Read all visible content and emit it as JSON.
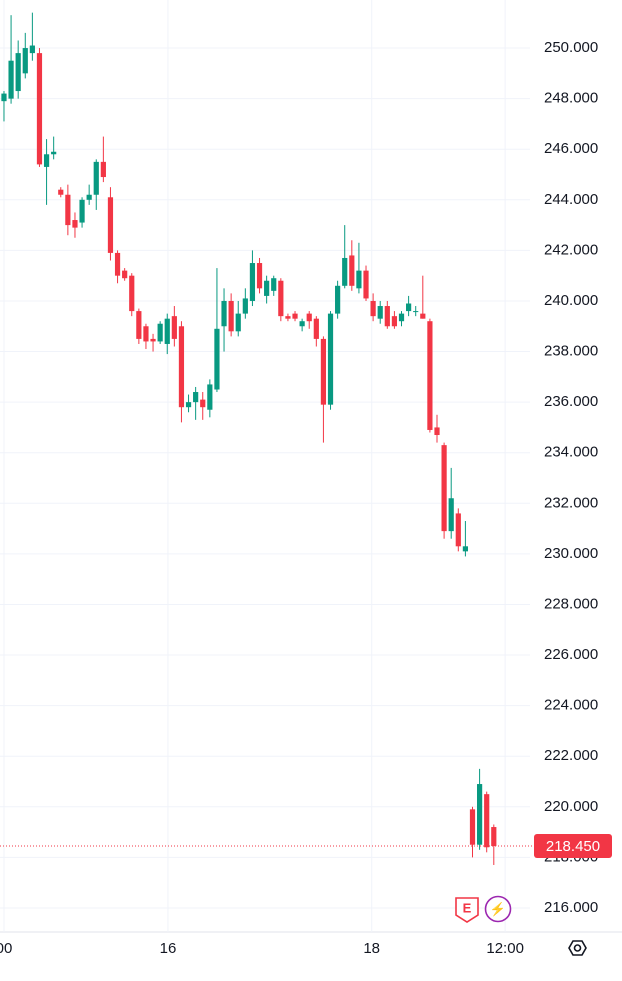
{
  "chart_data": {
    "type": "candlestick",
    "ylim": [
      215.05,
      251.9
    ],
    "yticks": [
      {
        "value": 216,
        "label": "216.000"
      },
      {
        "value": 218,
        "label": "218.000"
      },
      {
        "value": 220,
        "label": "220.000"
      },
      {
        "value": 222,
        "label": "222.000"
      },
      {
        "value": 224,
        "label": "224.000"
      },
      {
        "value": 226,
        "label": "226.000"
      },
      {
        "value": 228,
        "label": "228.000"
      },
      {
        "value": 230,
        "label": "230.000"
      },
      {
        "value": 232,
        "label": "232.000"
      },
      {
        "value": 234,
        "label": "234.000"
      },
      {
        "value": 236,
        "label": "236.000"
      },
      {
        "value": 238,
        "label": "238.000"
      },
      {
        "value": 240,
        "label": "240.000"
      },
      {
        "value": 242,
        "label": "242.000"
      },
      {
        "value": 244,
        "label": "244.000"
      },
      {
        "value": 246,
        "label": "246.000"
      },
      {
        "value": 248,
        "label": "248.000"
      },
      {
        "value": 250,
        "label": "250.000"
      }
    ],
    "xlim": [
      -0.56,
      74.1
    ],
    "xticks": [
      {
        "value": 0,
        "label": "00"
      },
      {
        "value": 23.1,
        "label": "16"
      },
      {
        "value": 51.8,
        "label": "18"
      },
      {
        "value": 70.6,
        "label": "12:00"
      }
    ],
    "grid": true,
    "up_color": "#089981",
    "down_color": "#f23645",
    "open": [
      247.9,
      248.0,
      248.3,
      249.0,
      249.8,
      249.8,
      245.3,
      245.8,
      244.4,
      244.2,
      243.2,
      243.1,
      244.0,
      244.2,
      245.5,
      244.1,
      241.9,
      241.2,
      241.0,
      239.6,
      239.0,
      238.5,
      238.4,
      238.3,
      239.4,
      239.0,
      235.8,
      236.0,
      236.1,
      235.7,
      236.5,
      239.0,
      240.0,
      238.8,
      239.5,
      240.0,
      241.5,
      240.2,
      240.4,
      240.8,
      239.4,
      239.5,
      239.0,
      239.5,
      239.3,
      238.5,
      235.9,
      239.5,
      240.6,
      241.8,
      240.5,
      241.2,
      240.0,
      239.3,
      239.8,
      239.4,
      239.2,
      239.6,
      239.6,
      239.5,
      239.2,
      235.0,
      234.3,
      230.9,
      231.6,
      230.1,
      219.9,
      218.5,
      220.5,
      219.2
    ],
    "high": [
      248.3,
      251.3,
      250.3,
      250.6,
      251.4,
      250.0,
      246.4,
      246.5,
      244.5,
      244.6,
      243.5,
      244.1,
      244.6,
      245.6,
      246.5,
      244.5,
      242.0,
      241.3,
      241.1,
      239.7,
      239.1,
      238.7,
      239.2,
      239.5,
      239.8,
      239.2,
      236.3,
      236.6,
      236.4,
      236.9,
      241.3,
      240.5,
      240.3,
      240.0,
      240.5,
      242.0,
      241.7,
      241.0,
      241.0,
      240.9,
      239.5,
      239.6,
      239.3,
      239.6,
      239.4,
      238.6,
      239.6,
      240.8,
      243.0,
      242.4,
      242.3,
      241.4,
      240.3,
      240.0,
      240.0,
      239.6,
      239.6,
      240.2,
      239.8,
      241.0,
      239.3,
      235.5,
      234.4,
      233.4,
      231.8,
      231.3,
      220.0,
      221.5,
      220.6,
      219.3
    ],
    "low": [
      247.1,
      247.8,
      248.0,
      248.8,
      249.5,
      245.3,
      243.8,
      245.6,
      244.1,
      242.6,
      242.5,
      242.9,
      243.8,
      243.6,
      244.7,
      241.6,
      240.7,
      240.8,
      239.4,
      238.3,
      238.1,
      238.0,
      238.3,
      237.9,
      238.2,
      235.2,
      235.6,
      235.3,
      235.3,
      235.4,
      236.4,
      238.0,
      238.6,
      238.6,
      239.3,
      239.8,
      240.3,
      239.9,
      240.2,
      239.2,
      239.2,
      239.2,
      238.8,
      238.9,
      238.2,
      234.4,
      235.7,
      239.3,
      240.5,
      240.4,
      240.3,
      240.0,
      239.2,
      239.1,
      238.9,
      238.9,
      239.0,
      239.4,
      239.4,
      239.3,
      234.8,
      234.4,
      230.6,
      230.6,
      230.1,
      229.9,
      218.0,
      218.3,
      218.2,
      217.7
    ],
    "close": [
      248.2,
      249.5,
      249.8,
      250.0,
      250.1,
      245.4,
      245.8,
      245.9,
      244.2,
      243.0,
      242.9,
      244.0,
      244.2,
      245.5,
      244.9,
      241.9,
      241.0,
      240.9,
      239.6,
      238.5,
      238.4,
      238.4,
      239.1,
      239.3,
      238.5,
      235.8,
      236.0,
      236.4,
      235.8,
      236.7,
      238.9,
      240.0,
      238.8,
      239.5,
      240.1,
      241.5,
      240.5,
      240.8,
      240.9,
      239.4,
      239.3,
      239.3,
      239.2,
      239.2,
      238.5,
      235.9,
      239.5,
      240.6,
      241.7,
      240.6,
      241.2,
      240.1,
      239.4,
      239.8,
      239.0,
      239.0,
      239.5,
      239.9,
      239.6,
      239.3,
      234.9,
      234.7,
      230.9,
      232.2,
      230.3,
      230.3,
      218.5,
      220.9,
      218.4,
      218.45
    ],
    "last_price": {
      "value": 218.45,
      "label": "218.450"
    },
    "badges": [
      "E",
      "⚡"
    ]
  }
}
